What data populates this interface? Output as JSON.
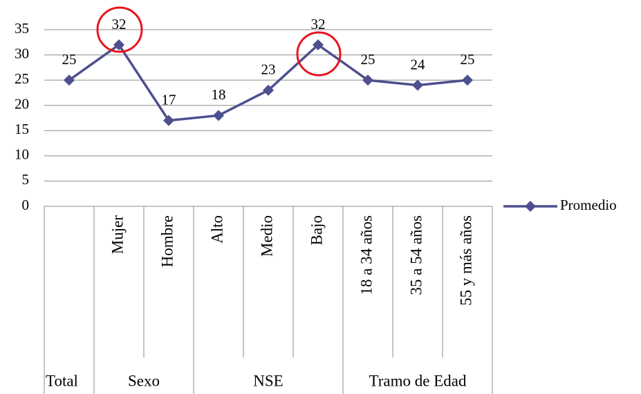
{
  "chart_data": {
    "type": "line",
    "categories": [
      null,
      "Mujer",
      "Hombre",
      "Alto",
      "Medio",
      "Bajo",
      "18 a 34 años",
      "35 a 54 años",
      "55 y más años"
    ],
    "groups": [
      {
        "name": "Total",
        "span": 1
      },
      {
        "name": "Sexo",
        "span": 2
      },
      {
        "name": "NSE",
        "span": 3
      },
      {
        "name": "Tramo de Edad",
        "span": 3
      }
    ],
    "series": [
      {
        "name": "Promedio",
        "color": "#4d4f8e",
        "values": [
          25,
          32,
          17,
          18,
          23,
          32,
          25,
          24,
          25
        ]
      }
    ],
    "ylim": [
      0,
      35
    ],
    "yticks": [
      0,
      5,
      10,
      15,
      20,
      25,
      30,
      35
    ],
    "grid": true,
    "legend": "right"
  }
}
